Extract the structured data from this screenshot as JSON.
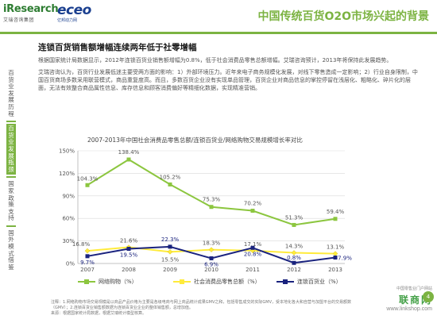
{
  "header": {
    "logo_iresearch": "iResearch",
    "logo_iresearch_sub": "艾瑞咨询集团",
    "logo_eceo": "eceo",
    "logo_eceo_sub": "亿邦动力网",
    "page_title": "中国传统百货O2O市场兴起的背景"
  },
  "sidenav": [
    {
      "label": "百货业发展历程",
      "active": false
    },
    {
      "label": "百货业发展瓶颈",
      "active": true
    },
    {
      "label": "国家政策支持",
      "active": false
    },
    {
      "label": "国外模式借鉴",
      "active": false
    }
  ],
  "content": {
    "headline": "连锁百货销售额增幅连续两年低于社零增幅",
    "para1": "根据国家统计局数据显示，2012年连锁百货业销售额增幅为0.8%，低于社会消费品零售总额增幅。艾瑞咨询预计，2013年将保持此发展趋势。",
    "para2": "艾瑞咨询认为，百货行业发展低迷主要受两方面的影响：1）外部环境压力。近年来电子商务规模化发展，对线下零售造成一定影响；2）行业自身限制，中国百货商场多数采用联营模式，商品重复度高。而且，多数百货企业没有实现单品管理，百货企业对商品信息的掌控停留在浅层化、粗略化、碎片化的层面，无法有效整合商品属性信息、库存信息和顾客消费偏好等精细化数据，实现精准营销。"
  },
  "chart_data": {
    "type": "line",
    "title": "2007-2013年中国社会消费品零售总额/连锁百货业/网络购物交易规模增长率对比",
    "x": [
      "2007",
      "2008",
      "2009",
      "2010",
      "2011",
      "2012",
      "2013"
    ],
    "yticks": [
      "0%",
      "30%",
      "60%",
      "90%",
      "120%",
      "150%"
    ],
    "ylim": [
      0,
      150
    ],
    "series": [
      {
        "name": "网络购物（%）",
        "color": "#8cc63f",
        "values": [
          104.3,
          138.4,
          105.2,
          75.3,
          70.2,
          51.3,
          59.4
        ],
        "labels": [
          "104.3%",
          "138.4%",
          "105.2%",
          "75.3%",
          "70.2%",
          "51.3%",
          "59.4%"
        ],
        "label_color": "#555555"
      },
      {
        "name": "社会消费品零售总额（%）",
        "color": "#ffeb3b",
        "values": [
          16.8,
          21.6,
          15.5,
          18.3,
          17.1,
          14.3,
          13.1
        ],
        "labels": [
          "16.8%",
          "21.6%",
          "15.5%",
          "18.3%",
          "17.1%",
          "14.3%",
          "13.1%"
        ],
        "label_color": "#555555"
      },
      {
        "name": "连锁百货业（%）",
        "color": "#1a237e",
        "values": [
          9.7,
          19.5,
          22.3,
          6.9,
          20.8,
          0.8,
          7.9
        ],
        "labels": [
          "9.7%",
          "19.5%",
          "22.3%",
          "6.9%",
          "20.8%",
          "0.8%",
          "7.9%"
        ],
        "label_color": "#1a237e"
      }
    ],
    "grid": true,
    "legend": "bottom"
  },
  "footnote": {
    "line1": "注释：1.网络购物市场交易规模是以商品产品价格为主要是各级电商与网上商品统计成果GMV之和，包括零售成交的实际GMV，受本地化各大和自营与加盟平台的交易额数（GMV）；2.连锁百货业销售额数据为连锁百货业企业的整体销售额，总增加值。",
    "line2": "来源：根据国家统计局数据，根据艾瑞统计模型核算。"
  },
  "brand": {
    "cn": "中国零售业门户网站",
    "name": "联商网",
    "url": "www.linkshop.com"
  },
  "page_number": "4"
}
